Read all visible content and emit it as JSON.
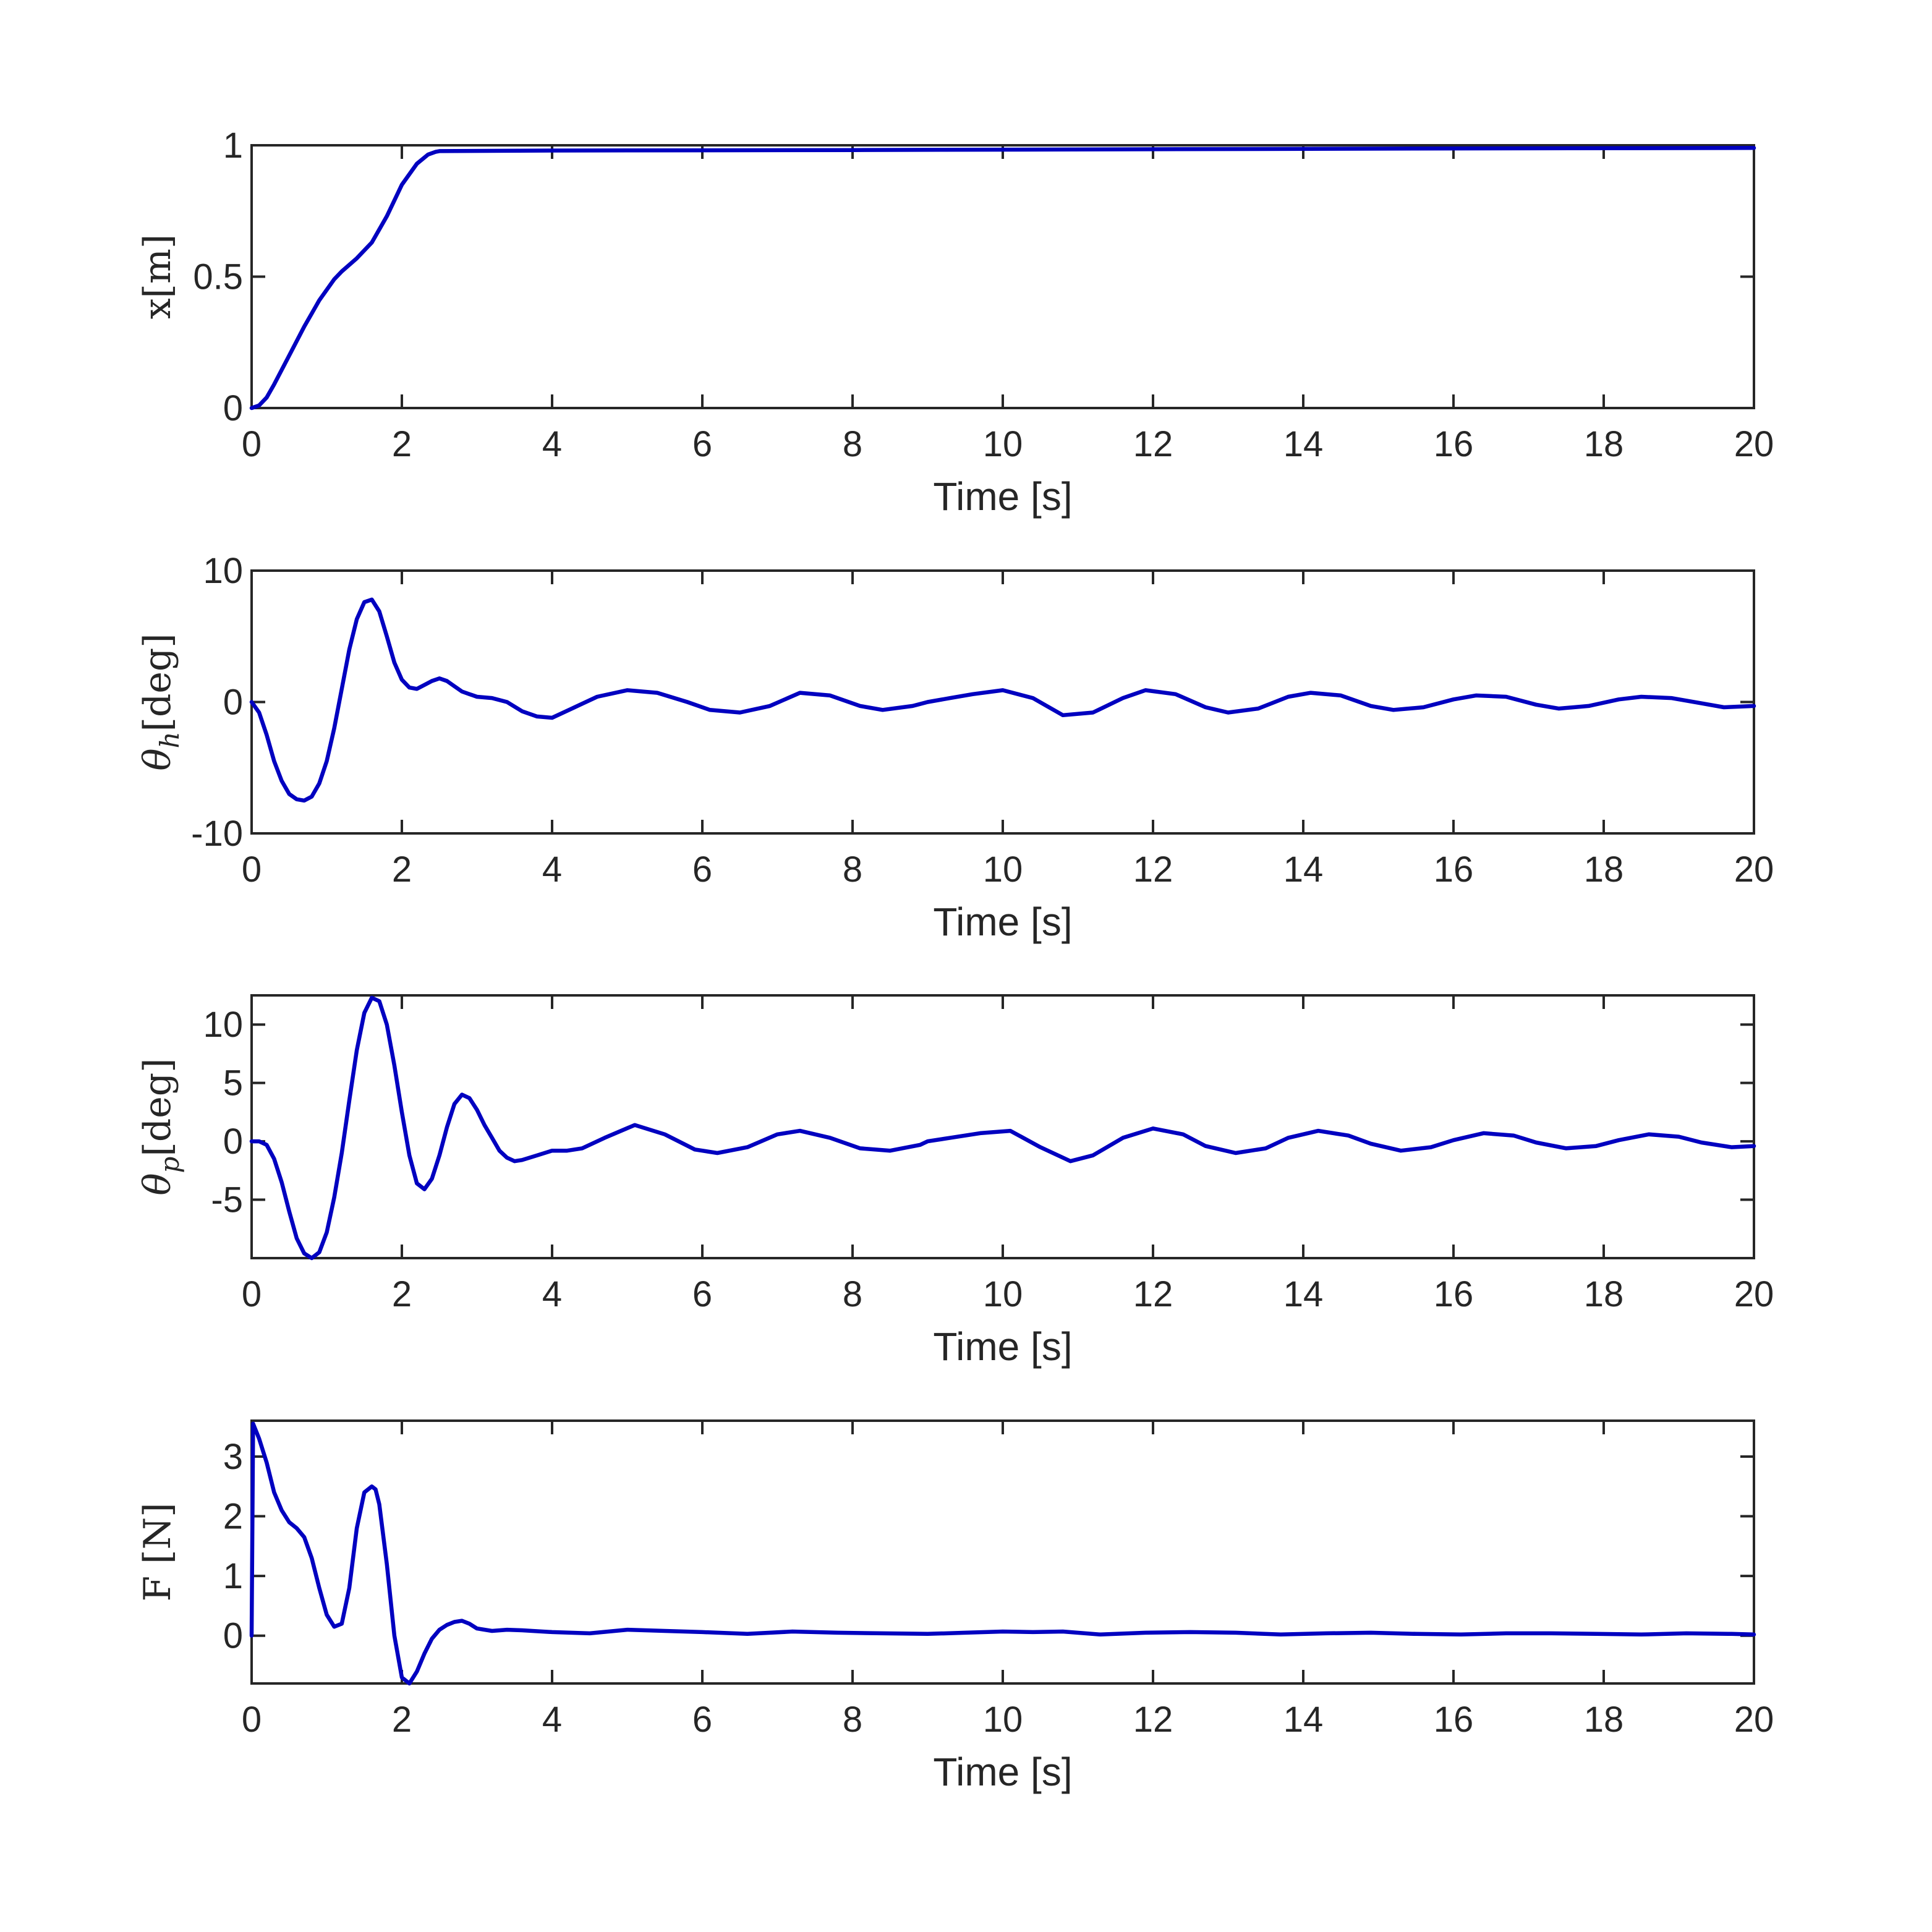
{
  "chart_data": [
    {
      "type": "line",
      "ylabel": "x[m]",
      "xlabel": "Time [s]",
      "xlim": [
        0,
        20
      ],
      "ylim": [
        0,
        1
      ],
      "xticks": [
        0,
        2,
        4,
        6,
        8,
        10,
        12,
        14,
        16,
        18,
        20
      ],
      "yticks": [
        0,
        0.5,
        1
      ],
      "ytick_labels": [
        "0",
        "0.5",
        "1"
      ],
      "grid": false,
      "color": "#0000C0",
      "series": [
        {
          "x": [
            0,
            0.1,
            0.2,
            0.3,
            0.5,
            0.7,
            0.9,
            1.1,
            1.2,
            1.4,
            1.6,
            1.8,
            2.0,
            2.2,
            2.35,
            2.45,
            2.5,
            4,
            8,
            12,
            16,
            20
          ],
          "y": [
            0,
            0.01,
            0.04,
            0.09,
            0.2,
            0.31,
            0.41,
            0.49,
            0.52,
            0.57,
            0.63,
            0.73,
            0.85,
            0.93,
            0.965,
            0.975,
            0.978,
            0.98,
            0.982,
            0.985,
            0.988,
            0.99
          ]
        }
      ]
    },
    {
      "type": "line",
      "ylabel": "θ_h[deg]",
      "xlabel": "Time [s]",
      "xlim": [
        0,
        20
      ],
      "ylim": [
        -10,
        10
      ],
      "xticks": [
        0,
        2,
        4,
        6,
        8,
        10,
        12,
        14,
        16,
        18,
        20
      ],
      "yticks": [
        -10,
        0,
        10
      ],
      "ytick_labels": [
        "-10",
        "0",
        "10"
      ],
      "grid": false,
      "color": "#0000C0",
      "series": [
        {
          "x": [
            0,
            0.1,
            0.2,
            0.3,
            0.4,
            0.5,
            0.6,
            0.7,
            0.8,
            0.9,
            1.0,
            1.1,
            1.2,
            1.3,
            1.4,
            1.5,
            1.6,
            1.7,
            1.8,
            1.9,
            2.0,
            2.1,
            2.2,
            2.3,
            2.4,
            2.5,
            2.6,
            2.7,
            2.8,
            2.9,
            3.0,
            3.2,
            3.4,
            3.6,
            3.8,
            4.0,
            4.3,
            4.6,
            5.0,
            5.4,
            5.8,
            6.1,
            6.5,
            6.9,
            7.3,
            7.7,
            8.1,
            8.4,
            8.8,
            9.0,
            9.3,
            9.6,
            10.0,
            10.4,
            10.8,
            11.2,
            11.6,
            11.9,
            12.3,
            12.7,
            13.0,
            13.4,
            13.8,
            14.1,
            14.5,
            14.9,
            15.2,
            15.6,
            16.0,
            16.3,
            16.7,
            17.1,
            17.4,
            17.8,
            18.2,
            18.5,
            18.9,
            19.3,
            19.6,
            20.0
          ],
          "y": [
            0,
            -0.8,
            -2.5,
            -4.5,
            -6.0,
            -7.0,
            -7.4,
            -7.5,
            -7.2,
            -6.2,
            -4.5,
            -2.0,
            1.0,
            4.0,
            6.3,
            7.6,
            7.8,
            6.9,
            5.0,
            3.0,
            1.7,
            1.1,
            1.0,
            1.3,
            1.6,
            1.8,
            1.6,
            1.2,
            0.8,
            0.6,
            0.4,
            0.3,
            0.0,
            -0.7,
            -1.1,
            -1.2,
            -0.4,
            0.4,
            0.9,
            0.7,
            0.0,
            -0.6,
            -0.8,
            -0.3,
            0.7,
            0.5,
            -0.3,
            -0.6,
            -0.3,
            0.0,
            0.3,
            0.6,
            0.9,
            0.3,
            -1.0,
            -0.8,
            0.3,
            0.9,
            0.6,
            -0.4,
            -0.8,
            -0.5,
            0.4,
            0.7,
            0.5,
            -0.3,
            -0.6,
            -0.4,
            0.2,
            0.5,
            0.4,
            -0.2,
            -0.5,
            -0.3,
            0.2,
            0.4,
            0.3,
            -0.1,
            -0.4,
            -0.3
          ]
        }
      ]
    },
    {
      "type": "line",
      "ylabel": "θ_p[deg]",
      "xlabel": "Time [s]",
      "xlim": [
        0,
        20
      ],
      "ylim": [
        -10,
        12.5
      ],
      "xticks": [
        0,
        2,
        4,
        6,
        8,
        10,
        12,
        14,
        16,
        18,
        20
      ],
      "yticks": [
        -5,
        0,
        5,
        10
      ],
      "ytick_labels": [
        "-5",
        "0",
        "5",
        "10"
      ],
      "grid": false,
      "color": "#0000C0",
      "series": [
        {
          "x": [
            0,
            0.1,
            0.2,
            0.3,
            0.4,
            0.5,
            0.6,
            0.7,
            0.8,
            0.9,
            1.0,
            1.1,
            1.2,
            1.3,
            1.4,
            1.5,
            1.6,
            1.7,
            1.8,
            1.9,
            2.0,
            2.1,
            2.2,
            2.3,
            2.4,
            2.5,
            2.6,
            2.7,
            2.8,
            2.9,
            3.0,
            3.1,
            3.2,
            3.3,
            3.4,
            3.5,
            3.6,
            3.8,
            4.0,
            4.2,
            4.4,
            4.7,
            5.1,
            5.5,
            5.9,
            6.2,
            6.6,
            7.0,
            7.3,
            7.7,
            8.1,
            8.5,
            8.9,
            9.0,
            9.3,
            9.7,
            10.1,
            10.5,
            10.9,
            11.2,
            11.6,
            12.0,
            12.4,
            12.7,
            13.1,
            13.5,
            13.8,
            14.2,
            14.6,
            14.9,
            15.3,
            15.7,
            16.0,
            16.4,
            16.8,
            17.1,
            17.5,
            17.9,
            18.2,
            18.6,
            19.0,
            19.3,
            19.7,
            20.0
          ],
          "y": [
            0,
            0,
            -0.3,
            -1.5,
            -3.5,
            -6.0,
            -8.3,
            -9.6,
            -10.0,
            -9.5,
            -7.8,
            -4.8,
            -1.0,
            3.5,
            7.8,
            11.0,
            12.3,
            12.0,
            10.0,
            6.5,
            2.5,
            -1.2,
            -3.6,
            -4.1,
            -3.2,
            -1.2,
            1.2,
            3.2,
            4.0,
            3.7,
            2.7,
            1.4,
            0.3,
            -0.8,
            -1.4,
            -1.7,
            -1.6,
            -1.2,
            -0.8,
            -0.8,
            -0.6,
            0.3,
            1.4,
            0.6,
            -0.7,
            -1.0,
            -0.5,
            0.6,
            0.9,
            0.3,
            -0.6,
            -0.8,
            -0.3,
            0.0,
            0.3,
            0.7,
            0.9,
            -0.5,
            -1.7,
            -1.2,
            0.3,
            1.1,
            0.6,
            -0.4,
            -1.0,
            -0.6,
            0.3,
            0.9,
            0.5,
            -0.2,
            -0.8,
            -0.5,
            0.1,
            0.7,
            0.5,
            -0.1,
            -0.6,
            -0.4,
            0.1,
            0.6,
            0.4,
            -0.1,
            -0.5,
            -0.4
          ]
        }
      ]
    },
    {
      "type": "line",
      "ylabel": "F [N]",
      "xlabel": "Time [s]",
      "xlim": [
        0,
        20
      ],
      "ylim": [
        -0.8,
        3.6
      ],
      "xticks": [
        0,
        2,
        4,
        6,
        8,
        10,
        12,
        14,
        16,
        18,
        20
      ],
      "yticks": [
        0,
        1,
        2,
        3
      ],
      "ytick_labels": [
        "0",
        "1",
        "2",
        "3"
      ],
      "grid": false,
      "color": "#0000C0",
      "series": [
        {
          "x": [
            0,
            0.02,
            0.1,
            0.2,
            0.3,
            0.4,
            0.5,
            0.6,
            0.7,
            0.8,
            0.9,
            1.0,
            1.1,
            1.2,
            1.3,
            1.4,
            1.5,
            1.6,
            1.65,
            1.7,
            1.8,
            1.9,
            2.0,
            2.1,
            2.2,
            2.3,
            2.4,
            2.5,
            2.6,
            2.7,
            2.8,
            2.9,
            3.0,
            3.2,
            3.4,
            3.6,
            4.0,
            4.5,
            5.0,
            5.5,
            6.0,
            6.6,
            7.2,
            7.8,
            8.4,
            9.0,
            9.5,
            10.0,
            10.4,
            10.8,
            11.3,
            11.9,
            12.5,
            13.1,
            13.7,
            14.3,
            14.9,
            15.5,
            16.1,
            16.7,
            17.3,
            17.9,
            18.5,
            19.1,
            19.7,
            20.0
          ],
          "y": [
            0,
            3.55,
            3.3,
            2.9,
            2.4,
            2.1,
            1.9,
            1.8,
            1.65,
            1.3,
            0.8,
            0.35,
            0.15,
            0.2,
            0.8,
            1.8,
            2.4,
            2.5,
            2.45,
            2.2,
            1.2,
            0.0,
            -0.7,
            -0.8,
            -0.6,
            -0.3,
            -0.05,
            0.1,
            0.18,
            0.23,
            0.25,
            0.2,
            0.12,
            0.08,
            0.1,
            0.09,
            0.06,
            0.04,
            0.1,
            0.08,
            0.06,
            0.03,
            0.07,
            0.05,
            0.04,
            0.03,
            0.05,
            0.07,
            0.06,
            0.07,
            0.02,
            0.05,
            0.06,
            0.05,
            0.02,
            0.04,
            0.05,
            0.03,
            0.02,
            0.04,
            0.04,
            0.03,
            0.02,
            0.04,
            0.03,
            0.02
          ]
        }
      ]
    }
  ]
}
